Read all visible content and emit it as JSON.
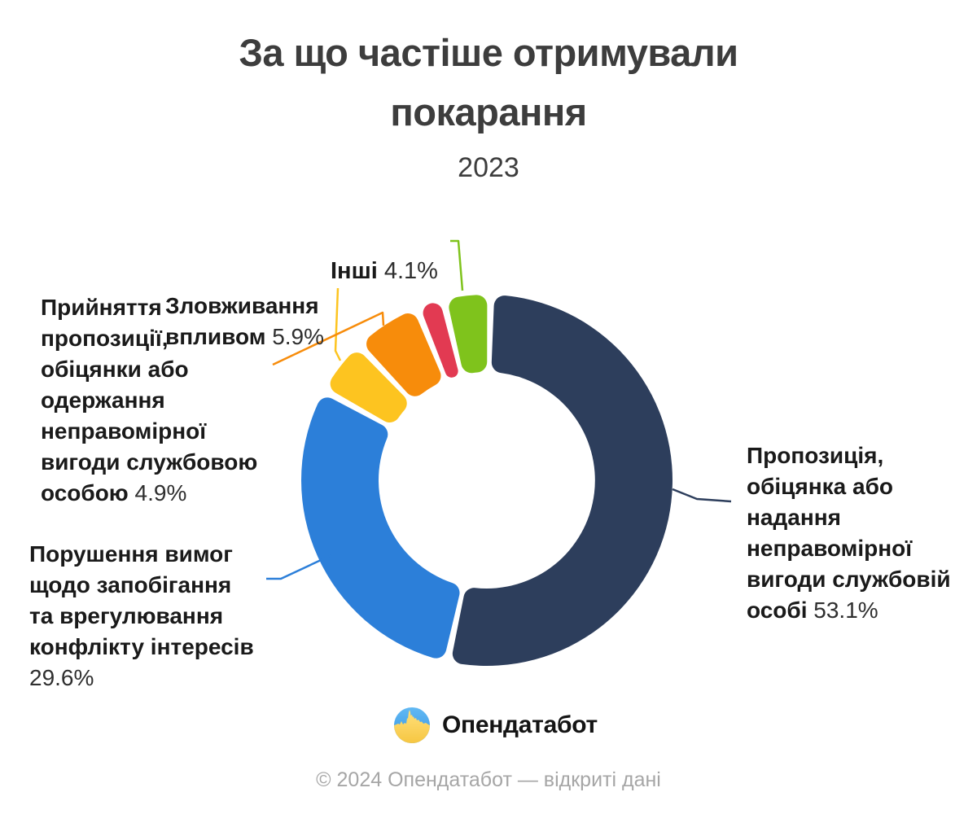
{
  "title": {
    "text": "За що частіше отримували\nпокарання",
    "subtitle": "2023"
  },
  "chart_data": {
    "type": "pie",
    "subtype": "donut",
    "title": "За що частіше отримували покарання",
    "period": "2023",
    "unit": "%",
    "legend_position": "callout-labels",
    "slices": [
      {
        "id": "propozytsiia",
        "label": "Пропозиція, обіцянка або надання неправомірної вигоди службовій особі",
        "value": 53.1,
        "color": "#2d3e5c"
      },
      {
        "id": "porushennia",
        "label": "Порушення вимог щодо запобігання та врегулювання конфлікту інтересів",
        "value": 29.6,
        "color": "#2c7fd9"
      },
      {
        "id": "pryiniattia",
        "label": "Прийняття пропозиції, обіцянки або одержання неправомірної вигоди службовою особою",
        "value": 4.9,
        "color": "#fdc420"
      },
      {
        "id": "zlovzhyvannia",
        "label": "Зловживання впливом",
        "value": 5.9,
        "color": "#f78c0b"
      },
      {
        "id": "unlabeled",
        "label": "",
        "value": 2.4,
        "color": "#e23a52"
      },
      {
        "id": "inshi",
        "label": "Інші",
        "value": 4.1,
        "color": "#7fc31c"
      }
    ],
    "center": [
      598,
      590
    ],
    "outer_radius": 228,
    "inner_radius": 133,
    "corner_radius": 13,
    "start_angle_deg": 1.2,
    "pad_angle_deg": 2.2
  },
  "callouts": {
    "propozytsiia": {
      "bold": "Пропозиція,\nобіцянка або\nнадання\nнеправомірної\nвигоди службовій\nособі",
      "pct": " 53.1%"
    },
    "porushennia": {
      "bold": "Порушення вимог\nщодо запобігання\nта врегулювання\nконфлікту інтересів\n",
      "pct": " 29.6%"
    },
    "pryiniattia": {
      "bold": "Прийняття\nпропозиції,\nобіцянки або\nодержання\nнеправомірної\nвигоди службовою\nособою",
      "pct": " 4.9%"
    },
    "zlovzhyvannia": {
      "bold": "Зловживання\nвпливом",
      "pct": " 5.9%"
    },
    "inshi": {
      "bold": "Інші",
      "pct": " 4.1%"
    }
  },
  "logo": {
    "text": "Опендатабот"
  },
  "footer": {
    "text": "© 2024 Опендатабот — відкриті дані"
  }
}
